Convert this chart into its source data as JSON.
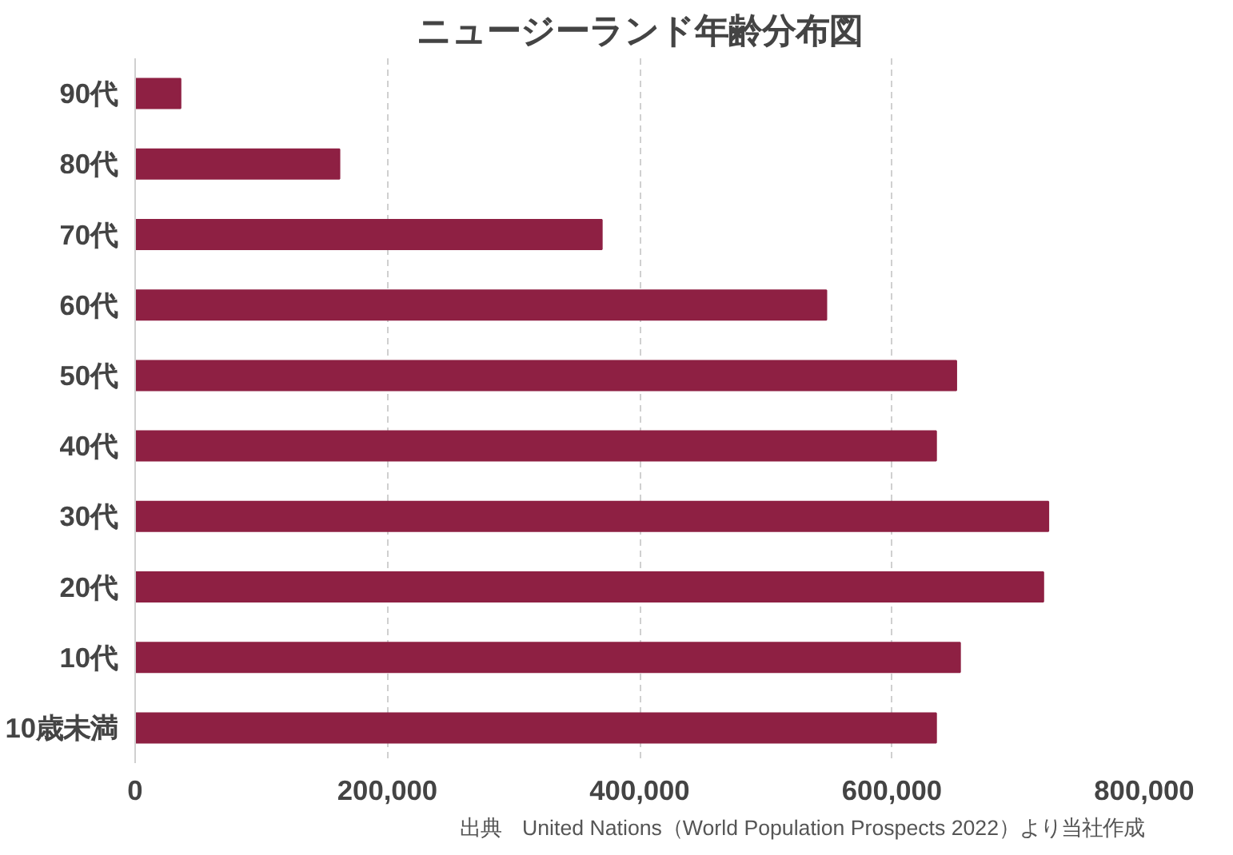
{
  "chart_data": {
    "type": "bar",
    "orientation": "horizontal",
    "title": "ニュージーランド年齢分布図",
    "categories": [
      "90代",
      "80代",
      "70代",
      "60代",
      "50代",
      "40代",
      "30代",
      "20代",
      "10代",
      "10歳未満"
    ],
    "values": [
      36000,
      162000,
      370000,
      548000,
      651000,
      635000,
      724000,
      720000,
      654000,
      635000
    ],
    "color": "#8e2043",
    "xlim": [
      0,
      800000
    ],
    "xticks": [
      {
        "value": 0,
        "label": "0"
      },
      {
        "value": 200000,
        "label": "200,000"
      },
      {
        "value": 400000,
        "label": "400,000"
      },
      {
        "value": 600000,
        "label": "600,000"
      },
      {
        "value": 800000,
        "label": "800,000"
      }
    ],
    "grid": "x",
    "annotations": [
      "出典　United Nations（World Population Prospects 2022）より当社作成"
    ]
  }
}
